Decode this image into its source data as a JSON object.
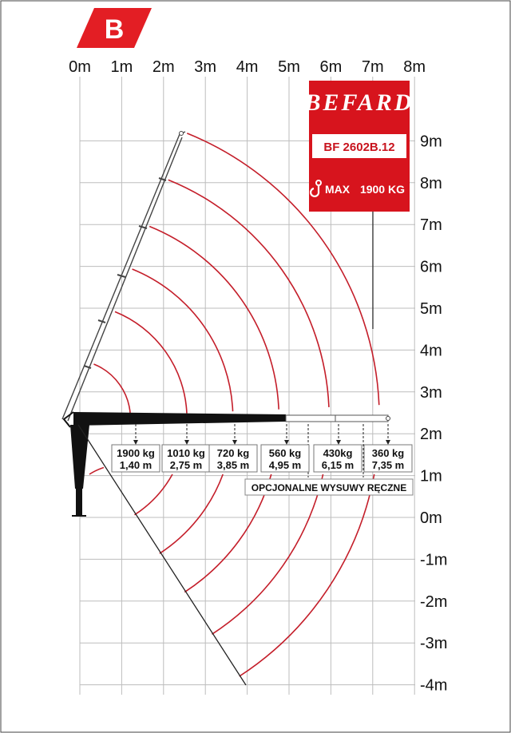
{
  "badge": {
    "letter": "B",
    "color": "#e31e24"
  },
  "brand": {
    "name": "BEFARD",
    "model": "BF 2602B.12",
    "max_label": "MAX",
    "max_value": "1900 KG",
    "hook_icon": "crane-hook-icon",
    "color": "#d7141d"
  },
  "axes": {
    "x_labels": [
      "0m",
      "1m",
      "2m",
      "3m",
      "4m",
      "5m",
      "6m",
      "7m",
      "8m"
    ],
    "y_labels": [
      "9m",
      "8m",
      "7m",
      "6m",
      "5m",
      "4m",
      "3m",
      "2m",
      "1m",
      "0m",
      "-1m",
      "-2m",
      "-3m",
      "-4m"
    ]
  },
  "capacities": [
    {
      "kg": "1900 kg",
      "reach": "1,40 m"
    },
    {
      "kg": "1010 kg",
      "reach": "2,75 m"
    },
    {
      "kg": "720 kg",
      "reach": "3,85 m"
    },
    {
      "kg": "560 kg",
      "reach": "4,95 m"
    },
    {
      "kg": "430kg",
      "reach": "6,15 m"
    },
    {
      "kg": "360 kg",
      "reach": "7,35 m"
    }
  ],
  "note": "OPCJONALNE WYSUWY RĘCZNE",
  "colors": {
    "arc": "#c41e2a",
    "boom": "#111111",
    "grid": "#bdbdbd"
  },
  "chart_data": {
    "type": "diagram",
    "x_range": [
      0,
      8
    ],
    "y_range": [
      -4,
      9
    ],
    "radii_m": [
      1.4,
      2.75,
      3.85,
      4.95,
      6.15,
      7.35
    ]
  }
}
